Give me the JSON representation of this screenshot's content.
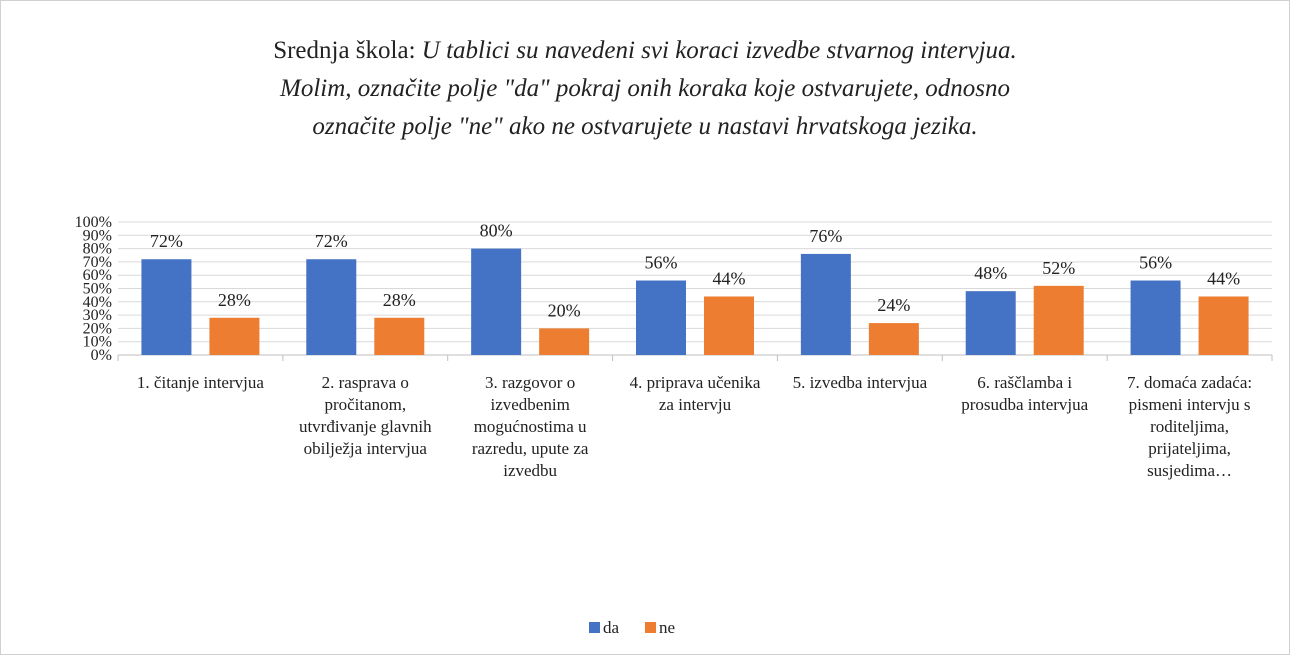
{
  "chart_data": {
    "type": "bar",
    "title": "Srednja škola:",
    "subtitle": [
      "U tablici su navedeni svi koraci izvedbe stvarnog intervjua.",
      "Molim, označite polje \"da\" pokraj onih koraka koje ostvarujete, odnosno",
      "označite polje \"ne\" ako ne ostvarujete u nastavi hrvatskoga jezika."
    ],
    "categories": [
      "1. čitanje intervjua",
      "2. rasprava o pročitanom, utvrđivanje glavnih obilježja intervjua",
      "3. razgovor o izvedbenim mogućnostima u razredu, upute za izvedbu",
      "4. priprava učenika za intervju",
      "5. izvedba intervjua",
      "6. raščlamba i prosudba intervjua",
      "7. domaća zadaća: pismeni intervju  s roditeljima, prijateljima, susjedima…"
    ],
    "series": [
      {
        "name": "da",
        "color": "#4472c4",
        "values": [
          72,
          72,
          80,
          56,
          76,
          48,
          56
        ],
        "value_labels": [
          "72%",
          "72%",
          "80%",
          "56%",
          "76%",
          "48%",
          "56%"
        ]
      },
      {
        "name": "ne",
        "color": "#ed7d31",
        "values": [
          28,
          28,
          20,
          44,
          24,
          52,
          44
        ],
        "value_labels": [
          "28%",
          "28%",
          "20%",
          "44%",
          "24%",
          "52%",
          "44%"
        ]
      }
    ],
    "ylim": [
      0,
      100
    ],
    "yticks": [
      {
        "value": 0,
        "label": "0%"
      },
      {
        "value": 10,
        "label": "10%"
      },
      {
        "value": 20,
        "label": "20%"
      },
      {
        "value": 30,
        "label": "30%"
      },
      {
        "value": 40,
        "label": "40%"
      },
      {
        "value": 50,
        "label": "50%"
      },
      {
        "value": 60,
        "label": "60%"
      },
      {
        "value": 70,
        "label": "70%"
      },
      {
        "value": 80,
        "label": "80%"
      },
      {
        "value": 90,
        "label": "90%"
      },
      {
        "value": 100,
        "label": "100%"
      }
    ],
    "grid": true,
    "legend": "bottom"
  }
}
